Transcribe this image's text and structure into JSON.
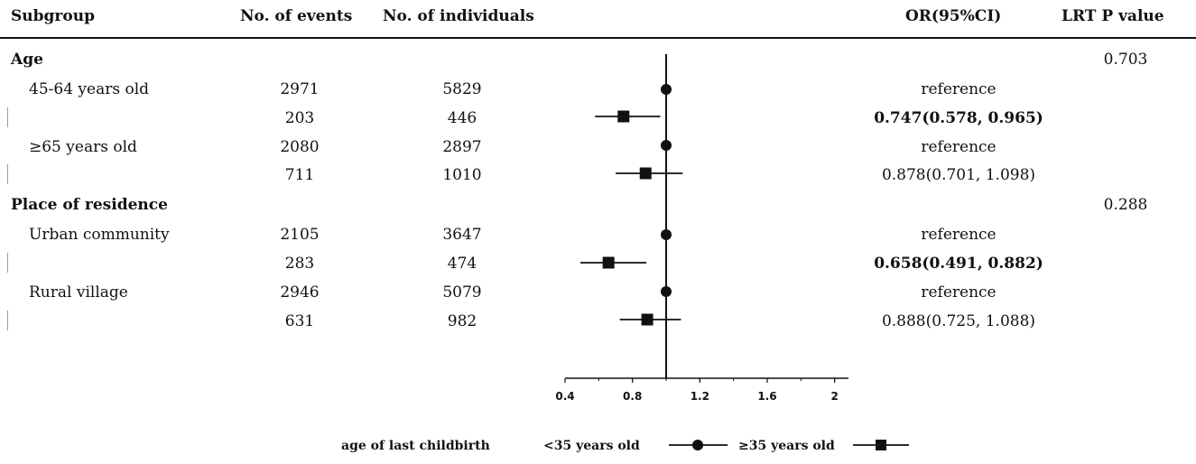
{
  "headers": {
    "subgroup": "Subgroup",
    "events": "No. of events",
    "individuals": "No. of individuals",
    "or": "OR(95%CI)",
    "p": "LRT P value"
  },
  "groups": [
    {
      "name": "Age",
      "p_value": "0.703",
      "rows": [
        {
          "label": "45-64 years old",
          "events": "2971",
          "individuals": "5829",
          "ci_text": "reference",
          "bold": false
        },
        {
          "label": "",
          "events": "203",
          "individuals": "446",
          "ci_text": "0.747(0.578, 0.965)",
          "bold": true
        },
        {
          "label": "≥65 years old",
          "events": "2080",
          "individuals": "2897",
          "ci_text": "reference",
          "bold": false
        },
        {
          "label": "",
          "events": "711",
          "individuals": "1010",
          "ci_text": "0.878(0.701, 1.098)",
          "bold": false
        }
      ]
    },
    {
      "name": "Place of residence",
      "p_value": "0.288",
      "rows": [
        {
          "label": "Urban community",
          "events": "2105",
          "individuals": "3647",
          "ci_text": "reference",
          "bold": false
        },
        {
          "label": "",
          "events": "283",
          "individuals": "474",
          "ci_text": "0.658(0.491, 0.882)",
          "bold": true
        },
        {
          "label": "Rural village",
          "events": "2946",
          "individuals": "5079",
          "ci_text": "reference",
          "bold": false
        },
        {
          "label": "",
          "events": "631",
          "individuals": "982",
          "ci_text": "0.888(0.725, 1.088)",
          "bold": false
        }
      ]
    }
  ],
  "chart_data": {
    "type": "scatter",
    "subtype": "forest-plot",
    "reference_line": 1,
    "xlim": [
      0.4,
      2.0
    ],
    "xticks": [
      "0.4",
      "0.8",
      "1.2",
      "1.6",
      "2"
    ],
    "xtick_values": [
      0.4,
      0.8,
      1.2,
      1.6,
      2.0
    ],
    "points": [
      {
        "row": 0,
        "series": "<35 years old",
        "or": 1.0,
        "lo": null,
        "hi": null
      },
      {
        "row": 1,
        "series": "≥35 years old",
        "or": 0.747,
        "lo": 0.578,
        "hi": 0.965
      },
      {
        "row": 2,
        "series": "<35 years old",
        "or": 1.0,
        "lo": null,
        "hi": null
      },
      {
        "row": 3,
        "series": "≥35 years old",
        "or": 0.878,
        "lo": 0.701,
        "hi": 1.098
      },
      {
        "row": 4,
        "series": "<35 years old",
        "or": 1.0,
        "lo": null,
        "hi": null
      },
      {
        "row": 5,
        "series": "≥35 years old",
        "or": 0.658,
        "lo": 0.491,
        "hi": 0.882
      },
      {
        "row": 6,
        "series": "<35 years old",
        "or": 1.0,
        "lo": null,
        "hi": null
      },
      {
        "row": 7,
        "series": "≥35 years old",
        "or": 0.888,
        "lo": 0.725,
        "hi": 1.088
      }
    ],
    "legend": {
      "title": "age of last childbirth",
      "items": [
        {
          "name": "<35 years old",
          "marker": "circle"
        },
        {
          "name": "≥35 years old",
          "marker": "square"
        }
      ]
    }
  }
}
